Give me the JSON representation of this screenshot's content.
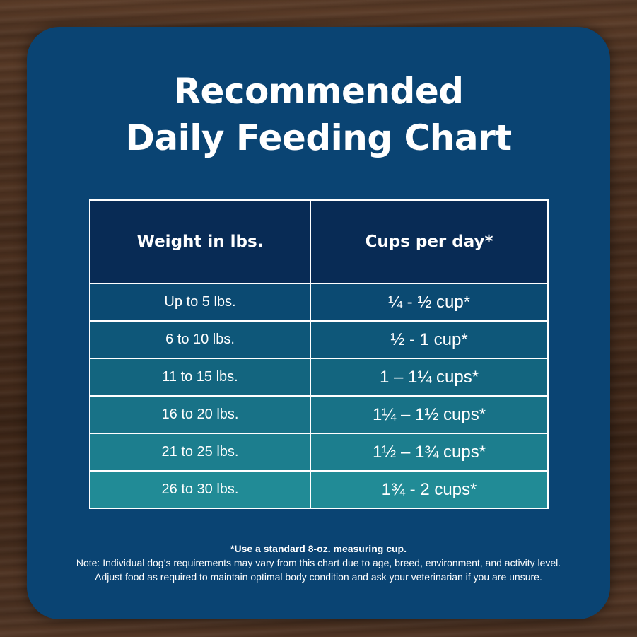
{
  "title": {
    "line1": "Recommended",
    "line2": "Daily Feeding Chart"
  },
  "table": {
    "headers": [
      "Weight in lbs.",
      "Cups per day*"
    ],
    "rows": [
      {
        "weight": "Up to 5 lbs.",
        "cups": "¼ - ½ cup*"
      },
      {
        "weight": "6 to 10 lbs.",
        "cups": "½ - 1 cup*"
      },
      {
        "weight": "11 to 15 lbs.",
        "cups": "1 – 1¼ cups*"
      },
      {
        "weight": "16 to 20 lbs.",
        "cups": "1¼ – 1½ cups*"
      },
      {
        "weight": "21 to 25 lbs.",
        "cups": "1½ – 1¾ cups*"
      },
      {
        "weight": "26 to 30 lbs.",
        "cups": "1¾ - 2 cups*"
      }
    ]
  },
  "footnote": {
    "line1": "*Use a standard 8-oz. measuring cup.",
    "line2": "Note: Individual dog’s requirements may vary from this chart due to age, breed, environment, and activity level.",
    "line3": "Adjust food as required to maintain optimal body condition and ask your veterinarian if you are unsure."
  },
  "colors": {
    "card": "#0a4473",
    "header": "#082b55",
    "row_gradient_start": "#0b4a72",
    "row_gradient_end": "#218b96",
    "text": "#ffffff"
  }
}
